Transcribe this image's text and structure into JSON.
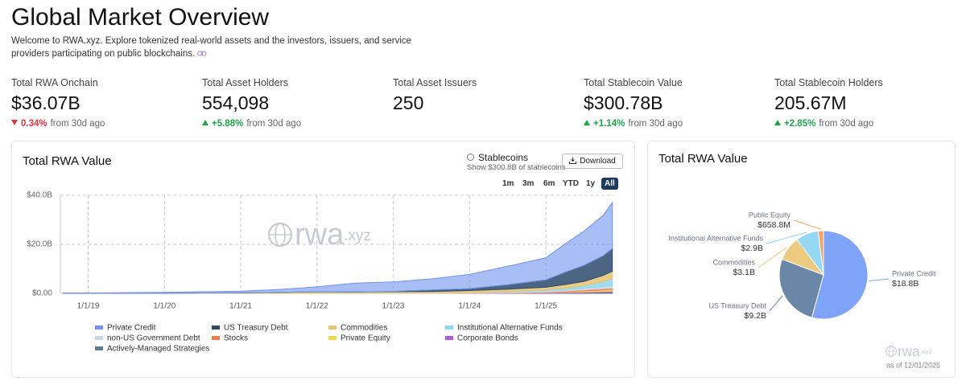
{
  "header": {
    "title": "Global Market Overview",
    "description": "Welcome to RWA.xyz. Explore tokenized real-world assets and the investors, issuers, and service providers participating on public blockchains."
  },
  "stats": [
    {
      "label": "Total RWA Onchain",
      "value": "$36.07B",
      "change": "0.34%",
      "direction": "down",
      "period": "from 30d ago"
    },
    {
      "label": "Total Asset Holders",
      "value": "554,098",
      "change": "+5.88%",
      "direction": "up",
      "period": "from 30d ago"
    },
    {
      "label": "Total Asset Issuers",
      "value": "250"
    },
    {
      "label": "Total Stablecoin Value",
      "value": "$300.78B",
      "change": "+1.14%",
      "direction": "up",
      "period": "from 30d ago"
    },
    {
      "label": "Total Stablecoin Holders",
      "value": "205.67M",
      "change": "+2.85%",
      "direction": "up",
      "period": "from 30d ago"
    }
  ],
  "controls": {
    "stablecoins": "Stablecoins",
    "stablecoins_note": "Show $300.8B of stablecoins",
    "download": "Download",
    "ranges": [
      "1m",
      "3m",
      "6m",
      "YTD",
      "1y",
      "All"
    ],
    "active_range": 5
  },
  "watermark": {
    "main": "rwa",
    "suffix": ".xyz"
  },
  "chart_data": [
    {
      "type": "area",
      "title": "Total RWA Value",
      "stacked": true,
      "grid": true,
      "x": [
        "9/1/18",
        "1/1/19",
        "7/1/19",
        "1/1/20",
        "7/1/20",
        "1/1/21",
        "7/1/21",
        "1/1/22",
        "7/1/22",
        "1/1/23",
        "7/1/23",
        "1/1/24",
        "7/1/24",
        "1/1/25",
        "4/1/25",
        "7/1/25",
        "10/1/25",
        "11/15/25"
      ],
      "xlim": [
        "8/20/18",
        "11/20/25"
      ],
      "xticks": [
        "1/1/19",
        "1/1/20",
        "1/1/21",
        "1/1/22",
        "1/1/23",
        "1/1/24",
        "1/1/25"
      ],
      "ylim": [
        0,
        40
      ],
      "yticks": [
        {
          "value": 0,
          "label": "$0.00"
        },
        {
          "value": 20,
          "label": "$20.0B"
        },
        {
          "value": 40,
          "label": "$40.0B"
        }
      ],
      "series": [
        {
          "name": "Private Credit",
          "color": "#6f93ec",
          "values": [
            0.05,
            0.1,
            0.2,
            0.3,
            0.5,
            0.7,
            1.2,
            2.0,
            3.6,
            3.9,
            4.5,
            5.8,
            7.5,
            9.0,
            11.5,
            14.0,
            16.5,
            18.8
          ]
        },
        {
          "name": "US Treasury Debt",
          "color": "#2d4a6d",
          "values": [
            0,
            0,
            0,
            0,
            0,
            0,
            0,
            0,
            0.05,
            0.1,
            0.6,
            0.8,
            1.8,
            3.0,
            5.0,
            6.5,
            8.0,
            9.2
          ]
        },
        {
          "name": "Commodities",
          "color": "#e8c372",
          "values": [
            0.05,
            0.05,
            0.1,
            0.1,
            0.15,
            0.2,
            0.4,
            0.6,
            0.5,
            0.6,
            0.7,
            0.8,
            1.0,
            1.1,
            1.5,
            1.7,
            2.5,
            3.1
          ]
        },
        {
          "name": "Institutional Alternative Funds",
          "color": "#8ed8ef",
          "values": [
            0,
            0,
            0,
            0,
            0,
            0,
            0,
            0,
            0,
            0,
            0,
            0,
            0.1,
            0.3,
            0.6,
            1.0,
            2.0,
            2.9
          ]
        },
        {
          "name": "non-US Government Debt",
          "color": "#c9d5e6",
          "values": [
            0,
            0,
            0,
            0,
            0,
            0,
            0,
            0.05,
            0.05,
            0.1,
            0.1,
            0.2,
            0.4,
            0.5,
            0.6,
            0.8,
            0.9,
            1.0
          ]
        },
        {
          "name": "Stocks",
          "color": "#f07a4a",
          "values": [
            0,
            0,
            0,
            0,
            0,
            0,
            0,
            0,
            0,
            0,
            0,
            0.05,
            0.1,
            0.2,
            0.3,
            0.4,
            0.5,
            0.5
          ]
        },
        {
          "name": "Private Equity",
          "color": "#f5d547",
          "values": [
            0,
            0,
            0,
            0,
            0,
            0,
            0,
            0,
            0,
            0,
            0,
            0,
            0,
            0.1,
            0.2,
            0.4,
            0.6,
            0.66
          ]
        },
        {
          "name": "Corporate Bonds",
          "color": "#b45ad6",
          "values": [
            0,
            0,
            0,
            0,
            0,
            0,
            0,
            0,
            0,
            0,
            0,
            0.1,
            0.1,
            0.2,
            0.2,
            0.3,
            0.3,
            0.3
          ]
        },
        {
          "name": "Actively-Managed Strategies",
          "color": "#5e7a99",
          "values": [
            0,
            0,
            0,
            0,
            0,
            0,
            0,
            0,
            0,
            0,
            0,
            0,
            0.05,
            0.1,
            0.2,
            0.3,
            0.5,
            0.6
          ]
        }
      ]
    },
    {
      "type": "pie",
      "title": "Total RWA Value",
      "categories": [
        "Private Credit",
        "US Treasury Debt",
        "Commodities",
        "Institutional Alternative Funds",
        "Public Equity"
      ],
      "values": [
        18.8,
        9.2,
        3.1,
        2.9,
        0.6588
      ],
      "value_labels": [
        "$18.8B",
        "$9.2B",
        "$3.1B",
        "$2.9B",
        "$658.8M"
      ],
      "colors": [
        "#7ea3f7",
        "#6b87a8",
        "#ecca7f",
        "#93d9f3",
        "#f4a261"
      ],
      "note": "as of 12/01/2025"
    }
  ]
}
